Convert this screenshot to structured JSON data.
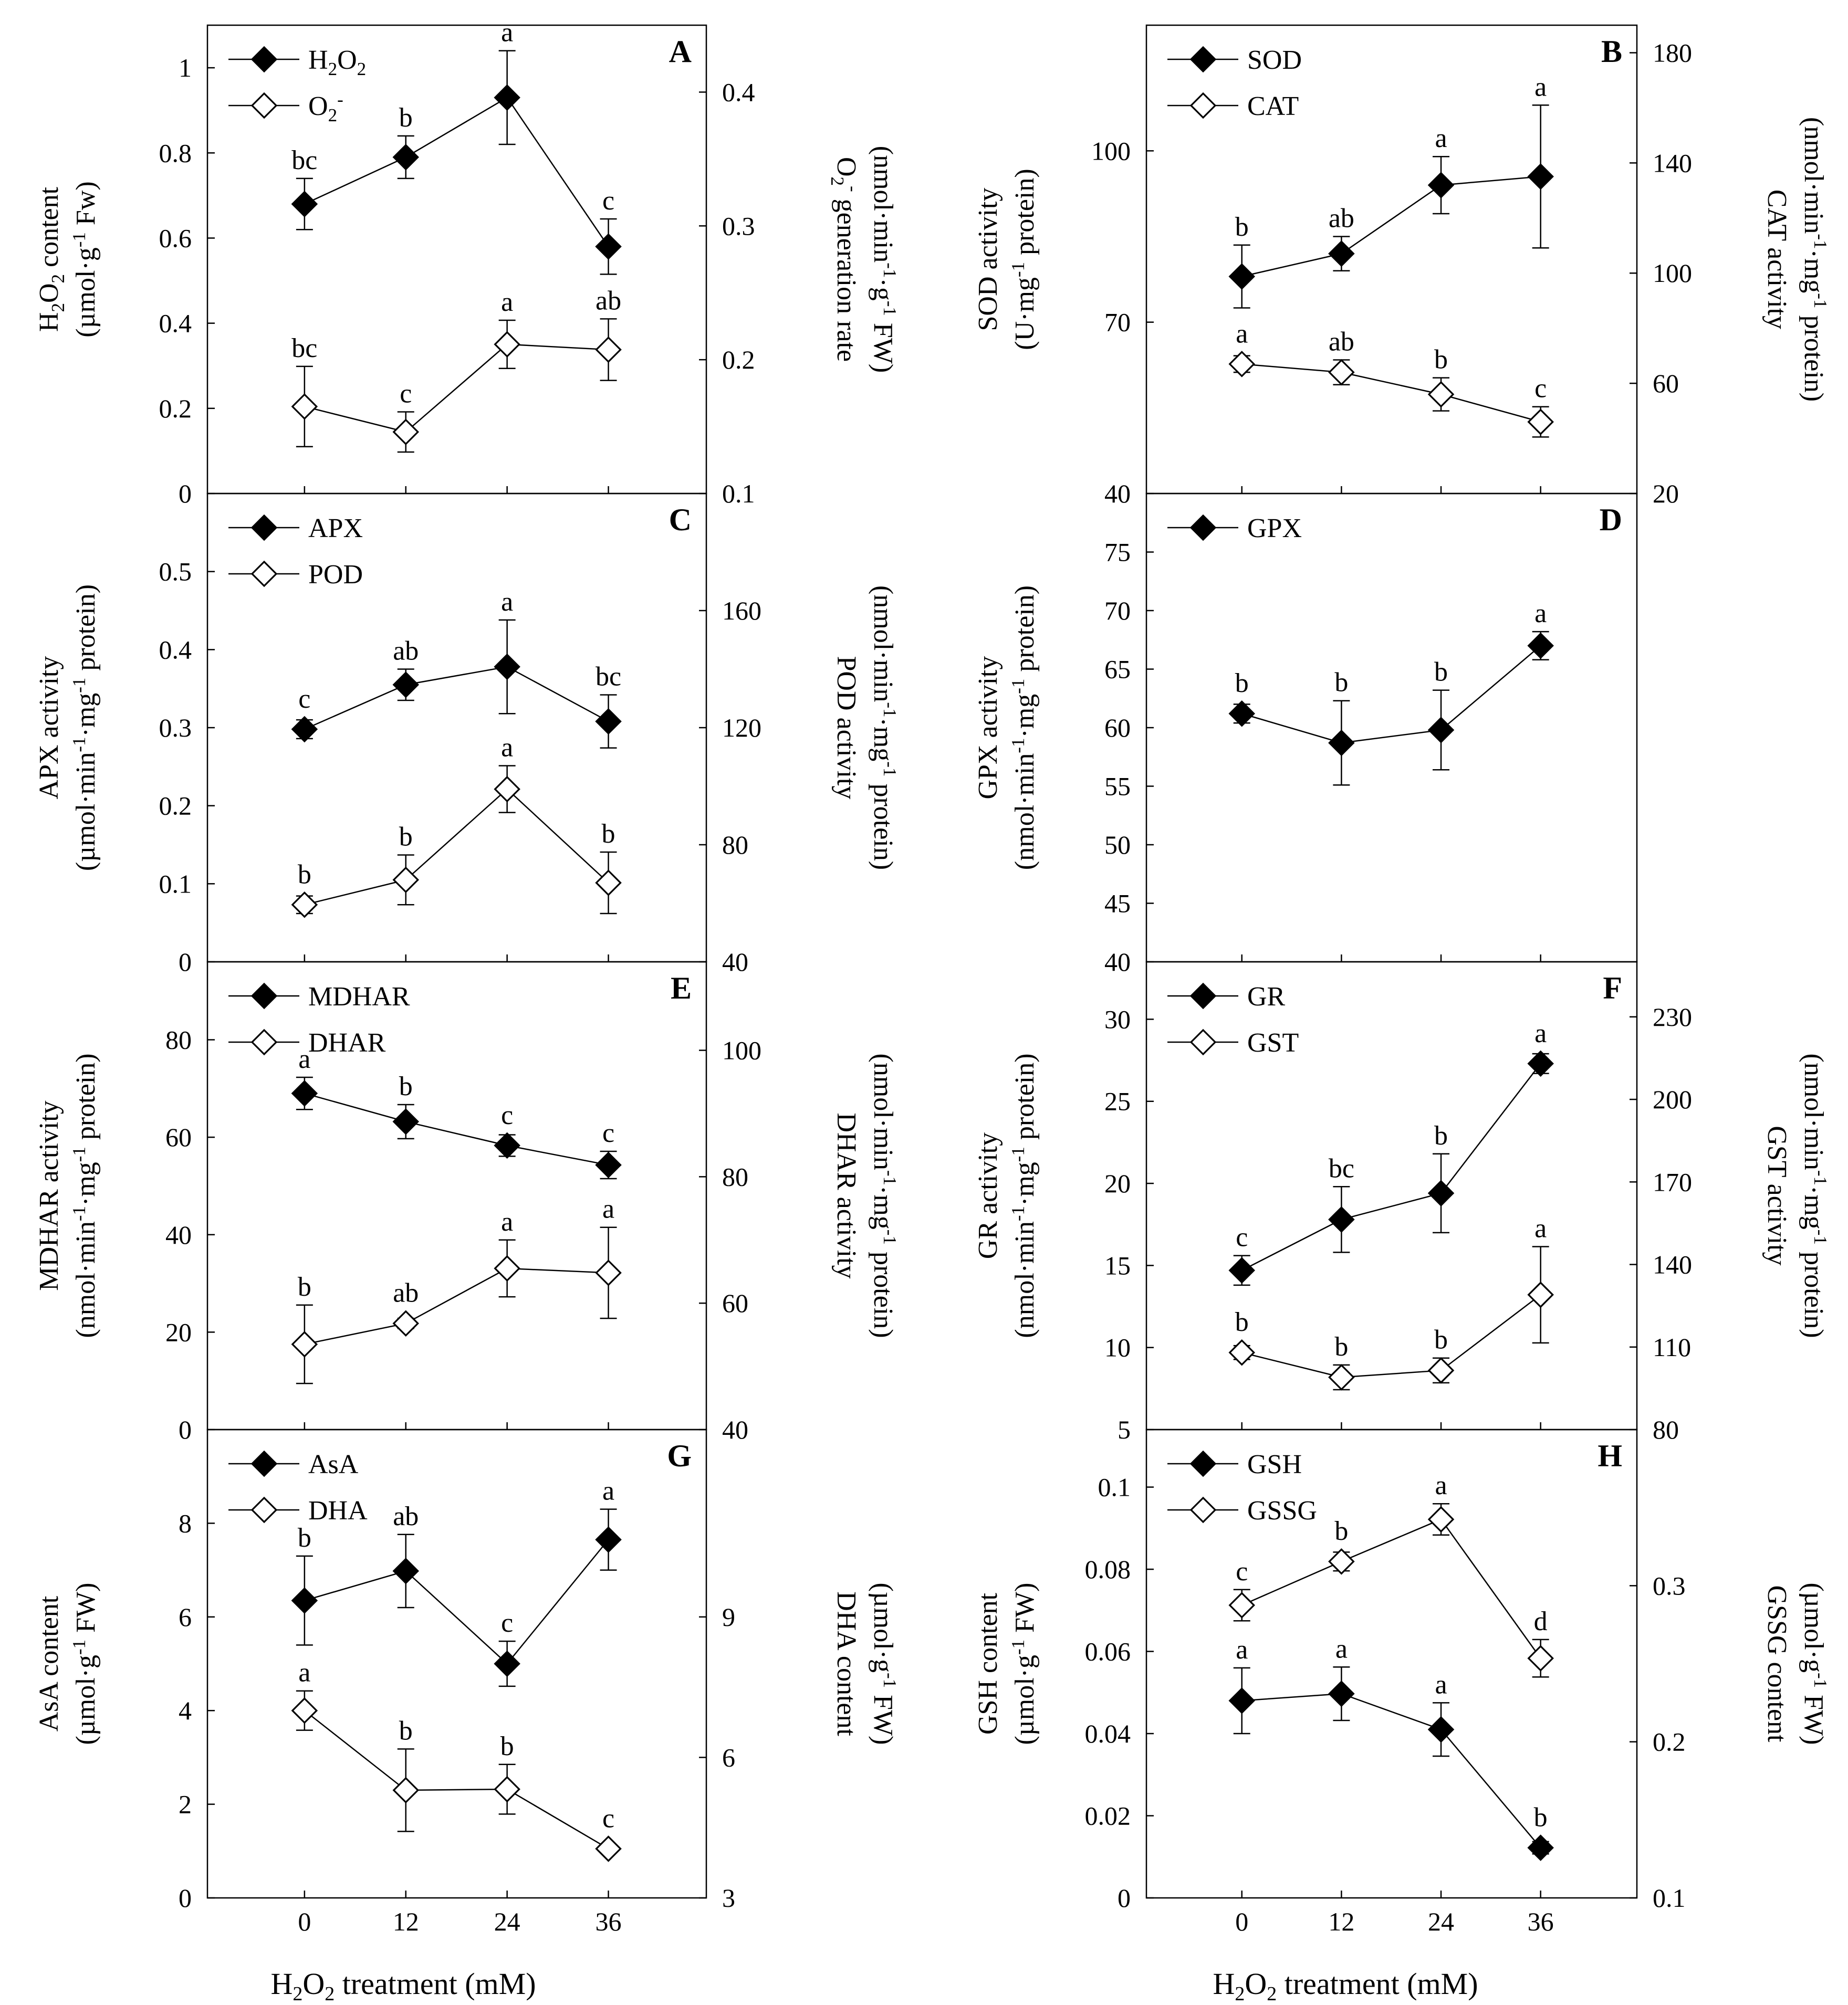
{
  "x_label_main": "H",
  "x_label_sub1": "2",
  "x_label_o": "O",
  "x_label_sub2": "2",
  "x_label_rest": " treatment (mM)",
  "chart_data": [
    {
      "panel": "A",
      "type": "line",
      "x": [
        0,
        12,
        24,
        36
      ],
      "ylim_left": [
        0,
        1.1
      ],
      "yticks_left": [
        0,
        0.2,
        0.4,
        0.6,
        0.8,
        1
      ],
      "ylim_right": [
        0.1,
        0.45
      ],
      "yticks_right": [
        0.1,
        0.2,
        0.3,
        0.4
      ],
      "ylabel_left": [
        [
          {
            "t": "H"
          },
          {
            "t": "2",
            "s": "sub"
          },
          {
            "t": "O"
          },
          {
            "t": "2",
            "s": "sub"
          },
          {
            "t": " content"
          }
        ],
        [
          {
            "t": "(µmol·g"
          },
          {
            "t": "-1",
            "s": "sup"
          },
          {
            "t": " Fw)"
          }
        ]
      ],
      "ylabel_right": [
        [
          {
            "t": "O"
          },
          {
            "t": "2",
            "s": "sub"
          },
          {
            "t": "-",
            "s": "sup"
          },
          {
            "t": " generation rate"
          }
        ],
        [
          {
            "t": "(nmol·min"
          },
          {
            "t": "-1",
            "s": "sup"
          },
          {
            "t": "·g"
          },
          {
            "t": "-1",
            "s": "sup"
          },
          {
            "t": " FW)"
          }
        ]
      ],
      "series": [
        {
          "name": [
            {
              "t": "H"
            },
            {
              "t": "2",
              "s": "sub"
            },
            {
              "t": "O"
            },
            {
              "t": "2",
              "s": "sub"
            }
          ],
          "marker": "filled",
          "axis": "left",
          "values": [
            0.68,
            0.79,
            0.93,
            0.58
          ],
          "err": [
            0.06,
            0.05,
            0.11,
            0.065
          ],
          "sig": [
            "bc",
            "b",
            "a",
            "c"
          ]
        },
        {
          "name": [
            {
              "t": "O"
            },
            {
              "t": "2",
              "s": "sub"
            },
            {
              "t": "-",
              "s": "sup"
            }
          ],
          "marker": "open",
          "axis": "right",
          "values": [
            0.165,
            0.146,
            0.2115,
            0.2075
          ],
          "err": [
            0.03,
            0.015,
            0.018,
            0.023
          ],
          "sig": [
            "bc",
            "c",
            "a",
            "ab"
          ]
        }
      ]
    },
    {
      "panel": "B",
      "type": "line",
      "x": [
        0,
        12,
        24,
        36
      ],
      "ylim_left": [
        40,
        122
      ],
      "yticks_left": [
        40,
        70,
        100
      ],
      "ylim_right": [
        20,
        190
      ],
      "yticks_right": [
        20,
        60,
        100,
        140,
        180
      ],
      "ylabel_left": [
        [
          {
            "t": "SOD activity"
          }
        ],
        [
          {
            "t": "(U·mg"
          },
          {
            "t": "-1",
            "s": "sup"
          },
          {
            "t": " protein)"
          }
        ]
      ],
      "ylabel_right": [
        [
          {
            "t": "CAT activity"
          }
        ],
        [
          {
            "t": "(nmol·min"
          },
          {
            "t": "-1",
            "s": "sup"
          },
          {
            "t": "·mg"
          },
          {
            "t": "-1",
            "s": "sup"
          },
          {
            "t": " protein)"
          }
        ]
      ],
      "series": [
        {
          "name": [
            {
              "t": "SOD"
            }
          ],
          "marker": "filled",
          "axis": "left",
          "values": [
            78,
            82,
            94,
            95.5
          ],
          "err": [
            5.5,
            3,
            5,
            12.5
          ],
          "sig": [
            "b",
            "ab",
            "a",
            "a"
          ]
        },
        {
          "name": [
            {
              "t": "CAT"
            }
          ],
          "marker": "open",
          "axis": "right",
          "values": [
            67,
            64,
            56,
            46
          ],
          "err": [
            3,
            4.5,
            6,
            5.5
          ],
          "sig": [
            "a",
            "ab",
            "b",
            "c"
          ]
        }
      ]
    },
    {
      "panel": "C",
      "type": "line",
      "x": [
        0,
        12,
        24,
        36
      ],
      "ylim_left": [
        0,
        0.6
      ],
      "yticks_left": [
        0,
        0.1,
        0.2,
        0.3,
        0.4,
        0.5
      ],
      "ylim_right": [
        40,
        200
      ],
      "yticks_right": [
        40,
        80,
        120,
        160
      ],
      "ylabel_left": [
        [
          {
            "t": "APX activity"
          }
        ],
        [
          {
            "t": "(µmol·min"
          },
          {
            "t": "-1",
            "s": "sup"
          },
          {
            "t": "·mg"
          },
          {
            "t": "-1",
            "s": "sup"
          },
          {
            "t": " protein)"
          }
        ]
      ],
      "ylabel_right": [
        [
          {
            "t": "POD activity"
          }
        ],
        [
          {
            "t": "(nmol·min"
          },
          {
            "t": "-1",
            "s": "sup"
          },
          {
            "t": "·mg"
          },
          {
            "t": "-1",
            "s": "sup"
          },
          {
            "t": " protein)"
          }
        ]
      ],
      "series": [
        {
          "name": [
            {
              "t": "APX"
            }
          ],
          "marker": "filled",
          "axis": "left",
          "values": [
            0.298,
            0.355,
            0.378,
            0.308
          ],
          "err": [
            0.012,
            0.02,
            0.06,
            0.034
          ],
          "sig": [
            "c",
            "ab",
            "a",
            "bc"
          ]
        },
        {
          "name": [
            {
              "t": "POD"
            }
          ],
          "marker": "open",
          "axis": "right",
          "values": [
            59.5,
            68,
            99,
            67
          ],
          "err": [
            3,
            8.5,
            8,
            10.5
          ],
          "sig": [
            "b",
            "b",
            "a",
            "b"
          ]
        }
      ]
    },
    {
      "panel": "D",
      "type": "line",
      "x": [
        0,
        12,
        24,
        36
      ],
      "ylim_left": [
        40,
        80
      ],
      "yticks_left": [
        40,
        45,
        50,
        55,
        60,
        65,
        70,
        75
      ],
      "ylim_right": null,
      "yticks_right": [],
      "ylabel_left": [
        [
          {
            "t": "GPX activity"
          }
        ],
        [
          {
            "t": "(nmol·min"
          },
          {
            "t": "-1",
            "s": "sup"
          },
          {
            "t": "·mg"
          },
          {
            "t": "-1",
            "s": "sup"
          },
          {
            "t": " protein)"
          }
        ]
      ],
      "ylabel_right": null,
      "series": [
        {
          "name": [
            {
              "t": "GPX"
            }
          ],
          "marker": "filled",
          "axis": "left",
          "values": [
            61.2,
            58.7,
            59.8,
            67
          ],
          "err": [
            0.8,
            3.6,
            3.4,
            1.2
          ],
          "sig": [
            "b",
            "b",
            "b",
            "a"
          ]
        }
      ]
    },
    {
      "panel": "E",
      "type": "line",
      "x": [
        0,
        12,
        24,
        36
      ],
      "ylim_left": [
        0,
        96
      ],
      "yticks_left": [
        0,
        20,
        40,
        60,
        80
      ],
      "ylim_right": [
        40,
        114
      ],
      "yticks_right": [
        40,
        60,
        80,
        100
      ],
      "ylabel_left": [
        [
          {
            "t": "MDHAR activity"
          }
        ],
        [
          {
            "t": "(nmol·min"
          },
          {
            "t": "-1",
            "s": "sup"
          },
          {
            "t": "·mg"
          },
          {
            "t": "-1",
            "s": "sup"
          },
          {
            "t": " protein)"
          }
        ]
      ],
      "ylabel_right": [
        [
          {
            "t": "DHAR activity"
          }
        ],
        [
          {
            "t": "(nmol·min"
          },
          {
            "t": "-1",
            "s": "sup"
          },
          {
            "t": "·mg"
          },
          {
            "t": "-1",
            "s": "sup"
          },
          {
            "t": " protein)"
          }
        ]
      ],
      "series": [
        {
          "name": [
            {
              "t": "MDHAR"
            }
          ],
          "marker": "filled",
          "axis": "left",
          "values": [
            69,
            63.2,
            58.3,
            54.3
          ],
          "err": [
            3.3,
            3.5,
            2.2,
            2.8
          ],
          "sig": [
            "a",
            "b",
            "c",
            "c"
          ]
        },
        {
          "name": [
            {
              "t": "DHAR"
            }
          ],
          "marker": "open",
          "axis": "right",
          "values": [
            53.5,
            56.8,
            65.5,
            64.8
          ],
          "err": [
            6.2,
            0.8,
            4.5,
            7.2
          ],
          "sig": [
            "b",
            "ab",
            "a",
            "a"
          ]
        }
      ]
    },
    {
      "panel": "F",
      "type": "line",
      "x": [
        0,
        12,
        24,
        36
      ],
      "ylim_left": [
        5,
        33.5
      ],
      "yticks_left": [
        5,
        10,
        15,
        20,
        25,
        30
      ],
      "ylim_right": [
        80,
        250
      ],
      "yticks_right": [
        80,
        110,
        140,
        170,
        200,
        230
      ],
      "ylabel_left": [
        [
          {
            "t": "GR activity"
          }
        ],
        [
          {
            "t": "(nmol·min"
          },
          {
            "t": "-1",
            "s": "sup"
          },
          {
            "t": "·mg"
          },
          {
            "t": "-1",
            "s": "sup"
          },
          {
            "t": " protein)"
          }
        ]
      ],
      "ylabel_right": [
        [
          {
            "t": "GST activity"
          }
        ],
        [
          {
            "t": "(nmol·min"
          },
          {
            "t": "-1",
            "s": "sup"
          },
          {
            "t": "·mg"
          },
          {
            "t": "-1",
            "s": "sup"
          },
          {
            "t": " protein)"
          }
        ]
      ],
      "series": [
        {
          "name": [
            {
              "t": "GR"
            }
          ],
          "marker": "filled",
          "axis": "left",
          "values": [
            14.7,
            17.8,
            19.4,
            27.3
          ],
          "err": [
            0.9,
            2,
            2.4,
            0.6
          ],
          "sig": [
            "c",
            "bc",
            "b",
            "a"
          ]
        },
        {
          "name": [
            {
              "t": "GST"
            }
          ],
          "marker": "open",
          "axis": "right",
          "values": [
            108,
            99,
            101.5,
            129
          ],
          "err": [
            2.5,
            4.5,
            4.5,
            17.5
          ],
          "sig": [
            "b",
            "b",
            "b",
            "a"
          ]
        }
      ]
    },
    {
      "panel": "G",
      "type": "line",
      "x": [
        0,
        12,
        24,
        36
      ],
      "ylim_left": [
        0,
        10
      ],
      "yticks_left": [
        0,
        2,
        4,
        6,
        8
      ],
      "ylim_right": [
        3,
        13
      ],
      "yticks_right": [
        3,
        6,
        9
      ],
      "ylabel_left": [
        [
          {
            "t": "AsA content"
          }
        ],
        [
          {
            "t": "(µmol·g"
          },
          {
            "t": "-1",
            "s": "sup"
          },
          {
            "t": " FW)"
          }
        ]
      ],
      "ylabel_right": [
        [
          {
            "t": "DHA content"
          }
        ],
        [
          {
            "t": "(µmol·g"
          },
          {
            "t": "-1",
            "s": "sup"
          },
          {
            "t": " FW)"
          }
        ]
      ],
      "series": [
        {
          "name": [
            {
              "t": "AsA"
            }
          ],
          "marker": "filled",
          "axis": "left",
          "values": [
            6.35,
            6.98,
            5.0,
            7.65
          ],
          "err": [
            0.95,
            0.78,
            0.48,
            0.65
          ],
          "sig": [
            "b",
            "ab",
            "c",
            "a"
          ]
        },
        {
          "name": [
            {
              "t": "DHA"
            }
          ],
          "marker": "open",
          "axis": "right",
          "values": [
            7.0,
            5.3,
            5.32,
            4.05
          ],
          "err": [
            0.42,
            0.88,
            0.53,
            0.08
          ],
          "sig": [
            "a",
            "b",
            "b",
            "c"
          ]
        }
      ]
    },
    {
      "panel": "H",
      "type": "line",
      "x": [
        0,
        12,
        24,
        36
      ],
      "ylim_left": [
        0,
        0.114
      ],
      "yticks_left": [
        0,
        0.02,
        0.04,
        0.06,
        0.08,
        0.1
      ],
      "ylim_right": [
        0.1,
        0.4
      ],
      "yticks_right": [
        0.1,
        0.2,
        0.3
      ],
      "ylabel_left": [
        [
          {
            "t": "GSH content"
          }
        ],
        [
          {
            "t": "(µmol·g"
          },
          {
            "t": "-1",
            "s": "sup"
          },
          {
            "t": " FW)"
          }
        ]
      ],
      "ylabel_right": [
        [
          {
            "t": "GSSG content"
          }
        ],
        [
          {
            "t": "(µmol·g"
          },
          {
            "t": "-1",
            "s": "sup"
          },
          {
            "t": " FW)"
          }
        ]
      ],
      "series": [
        {
          "name": [
            {
              "t": "GSH"
            }
          ],
          "marker": "filled",
          "axis": "left",
          "values": [
            0.048,
            0.0497,
            0.041,
            0.0122
          ],
          "err": [
            0.008,
            0.0065,
            0.0065,
            0.0015
          ],
          "sig": [
            "a",
            "a",
            "a",
            "b"
          ]
        },
        {
          "name": [
            {
              "t": "GSSG"
            }
          ],
          "marker": "open",
          "axis": "right",
          "values": [
            0.2875,
            0.3155,
            0.3425,
            0.2535
          ],
          "err": [
            0.01,
            0.006,
            0.01,
            0.012
          ],
          "sig": [
            "c",
            "b",
            "a",
            "d"
          ]
        }
      ]
    }
  ]
}
